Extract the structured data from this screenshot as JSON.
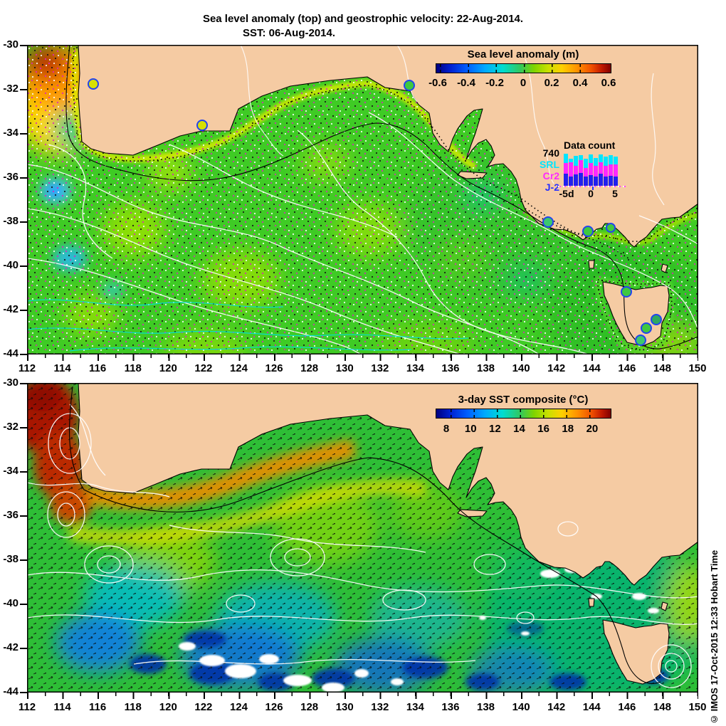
{
  "title": {
    "line1": "Sea level anomaly (top) and geostrophic velocity: 22-Aug-2014.",
    "line2": "SST: 06-Aug-2014."
  },
  "axes": {
    "x_ticks": [
      "112",
      "114",
      "116",
      "118",
      "120",
      "122",
      "124",
      "126",
      "128",
      "130",
      "132",
      "134",
      "136",
      "138",
      "140",
      "142",
      "144",
      "146",
      "148",
      "150"
    ],
    "y_ticks": [
      "-30",
      "-32",
      "-34",
      "-36",
      "-38",
      "-40",
      "-42",
      "-44"
    ]
  },
  "top_panel": {
    "colorbar": {
      "title": "Sea level anomaly (m)",
      "ticks": [
        "-0.6",
        "-0.4",
        "-0.2",
        "0",
        "0.2",
        "0.4",
        "0.6"
      ]
    },
    "data_count": {
      "title": "Data count",
      "y_max_label": "740",
      "series_labels": [
        {
          "label": "SRL",
          "color": "#00e5ff"
        },
        {
          "label": "Cr2",
          "color": "#ff28ff"
        },
        {
          "label": "J-2",
          "color": "#2830ff"
        }
      ],
      "colors": {
        "srl": "#00e5ff",
        "cr2": "#ff28ff",
        "j2": "#2020ee"
      },
      "x_ticks": [
        "-5d",
        "0",
        "5"
      ],
      "bars": [
        {
          "j2": 270,
          "cr2": 240,
          "srl": 200
        },
        {
          "j2": 200,
          "cr2": 320,
          "srl": 80
        },
        {
          "j2": 250,
          "cr2": 190,
          "srl": 220
        },
        {
          "j2": 280,
          "cr2": 290,
          "srl": 110
        },
        {
          "j2": 200,
          "cr2": 200,
          "srl": 200
        },
        {
          "j2": 240,
          "cr2": 270,
          "srl": 190
        },
        {
          "j2": 200,
          "cr2": 240,
          "srl": 170
        },
        {
          "j2": 270,
          "cr2": 250,
          "srl": 170
        },
        {
          "j2": 200,
          "cr2": 240,
          "srl": 200
        },
        {
          "j2": 220,
          "cr2": 250,
          "srl": 200
        },
        {
          "j2": 200,
          "cr2": 270,
          "srl": 170
        }
      ]
    }
  },
  "bottom_panel": {
    "colorbar": {
      "title": "3-day SST composite (°C)",
      "ticks": [
        "8",
        "10",
        "12",
        "14",
        "16",
        "18",
        "20"
      ]
    }
  },
  "watermark": "© IMOS 17-Oct-2015 12:33 Hobart Time",
  "colors": {
    "land": "#f5cba3",
    "sla_base_green": "#3fcb25",
    "station_yellow": "#d8e000",
    "station_green": "#3fc83f",
    "station_ring_blue": "#2244ee"
  },
  "chart_data": [
    {
      "type": "heatmap",
      "name": "sea-level-anomaly-map",
      "title": "Sea level anomaly (top) and geostrophic velocity: 22-Aug-2014.",
      "x_range": [
        112,
        150
      ],
      "y_range": [
        -44,
        -30
      ],
      "x_tick_labels": [
        112,
        114,
        116,
        118,
        120,
        122,
        124,
        126,
        128,
        130,
        132,
        134,
        136,
        138,
        140,
        142,
        144,
        146,
        148,
        150
      ],
      "y_tick_labels": [
        -30,
        -32,
        -34,
        -36,
        -38,
        -40,
        -42,
        -44
      ],
      "colorbar": {
        "label": "Sea level anomaly (m)",
        "range": [
          -0.6,
          0.6
        ],
        "ticks": [
          -0.6,
          -0.4,
          -0.2,
          0,
          0.2,
          0.4,
          0.6
        ]
      },
      "features": [
        {
          "desc": "strong positive anomaly (red/orange, +0.4 to +0.6 m) off west coast near 113E 31S"
        },
        {
          "desc": "weak negative anomaly (blue, -0.2 m) patches near 113.5E 36.5S and 114E 39.5S"
        },
        {
          "desc": "mostly slightly positive (green, 0 to +0.1 m) across Great Australian Bight and Tasman"
        },
        {
          "desc": "positive coastal band (yellow, +0.15 m) hugging the southern coastline"
        },
        {
          "desc": "geostrophic velocity shown as black/white/magenta dot vectors"
        },
        {
          "desc": "coastal tide-gauge stations shown as circles with blue rings"
        }
      ],
      "stations_lon_lat": [
        [
          115.8,
          -31.8
        ],
        [
          121.9,
          -33.7
        ],
        [
          133.7,
          -31.8
        ],
        [
          141.5,
          -38.0
        ],
        [
          143.5,
          -38.4
        ],
        [
          145.1,
          -38.3
        ],
        [
          146.0,
          -41.2
        ],
        [
          147.7,
          -42.5
        ],
        [
          147.1,
          -42.8
        ],
        [
          146.8,
          -43.4
        ]
      ]
    },
    {
      "type": "heatmap",
      "name": "sst-map",
      "title": "3-day SST composite (°C), SST: 06-Aug-2014.",
      "x_range": [
        112,
        150
      ],
      "y_range": [
        -44,
        -30
      ],
      "colorbar": {
        "label": "3-day SST composite (°C)",
        "range": [
          7,
          21.5
        ],
        "ticks": [
          8,
          10,
          12,
          14,
          16,
          18,
          20
        ]
      },
      "features": [
        {
          "desc": "warm Leeuwin Current plume ~20-21C (dark red) along WA west coast 112-116E"
        },
        {
          "desc": "orange coastal band ~17-18C along Great Australian Bight to 135E"
        },
        {
          "desc": "green-yellow 14-16C mid band 34-38S"
        },
        {
          "desc": "cyan-blue 9-12C south of 40S with navy patches ~8C and white cloud gaps"
        },
        {
          "desc": "teal-green ~13C around Tasmania and Bass Strait"
        },
        {
          "desc": "white sea-level-anomaly contours and black current arrows overlaid"
        }
      ]
    },
    {
      "type": "bar",
      "subtype": "stacked",
      "name": "data-count-inset",
      "title": "Data count",
      "categories_days": [
        -5,
        -4,
        -3,
        -2,
        -1,
        0,
        1,
        2,
        3,
        4,
        5
      ],
      "x_tick_labels": [
        "-5d",
        "0",
        "5"
      ],
      "ylim": [
        0,
        740
      ],
      "series": [
        {
          "name": "J-2",
          "color": "#2020ee",
          "values": [
            270,
            200,
            250,
            280,
            200,
            240,
            200,
            270,
            200,
            220,
            200
          ]
        },
        {
          "name": "Cr2",
          "color": "#ff28ff",
          "values": [
            240,
            320,
            190,
            290,
            200,
            270,
            240,
            250,
            240,
            250,
            270
          ]
        },
        {
          "name": "SRL",
          "color": "#00e5ff",
          "values": [
            200,
            80,
            220,
            110,
            200,
            190,
            170,
            170,
            200,
            200,
            170
          ]
        }
      ]
    }
  ]
}
